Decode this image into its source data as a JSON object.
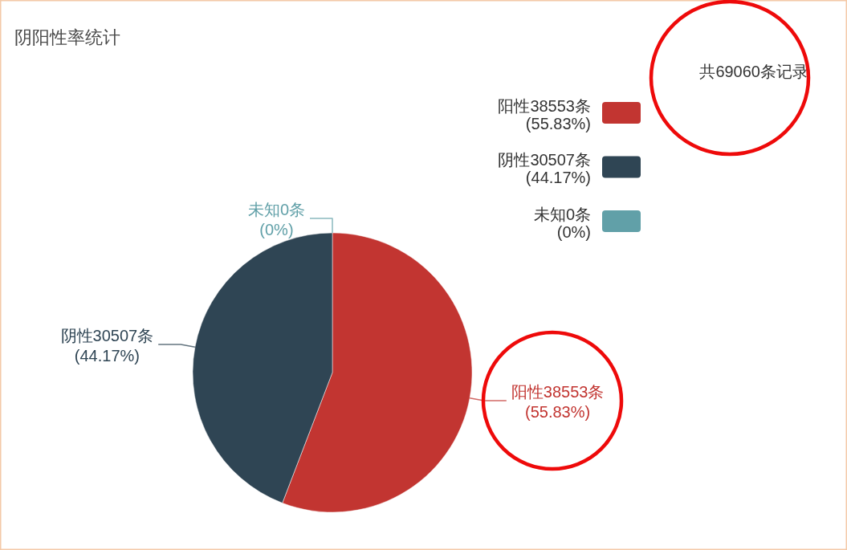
{
  "chart_data": {
    "type": "pie",
    "title": "阴阳性率统计",
    "annotations": [
      "共69060条记录"
    ],
    "categories": [
      "阳性38553条\n(55.83%)",
      "阴性30507条\n(44.17%)",
      "未知0条\n(0%)"
    ],
    "values": [
      38553,
      30507,
      0
    ],
    "colors": [
      "#c23531",
      "#2f4554",
      "#61a0a8"
    ],
    "legend": "top right"
  }
}
